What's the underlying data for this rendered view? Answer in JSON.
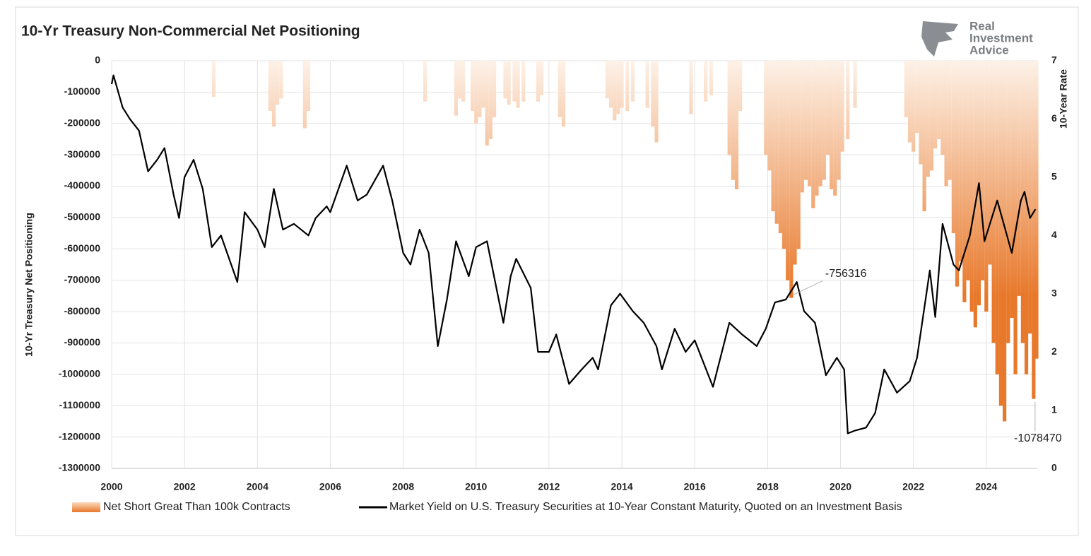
{
  "chart_data": {
    "type": "combo",
    "title": "10-Yr Treasury Non-Commercial Net Positioning",
    "ylabel": "10-Yr Treasury Net Positioning",
    "y2label": "10-Year Rate",
    "xlim": [
      2000,
      2025.4
    ],
    "xticks": [
      2000,
      2002,
      2004,
      2006,
      2008,
      2010,
      2012,
      2014,
      2016,
      2018,
      2020,
      2022,
      2024
    ],
    "ylim": [
      -1300000,
      0
    ],
    "yticks": [
      0,
      -100000,
      -200000,
      -300000,
      -400000,
      -500000,
      -600000,
      -700000,
      -800000,
      -900000,
      -1000000,
      -1100000,
      -1200000,
      -1300000
    ],
    "y2lim": [
      0,
      7
    ],
    "y2ticks": [
      0,
      1,
      2,
      3,
      4,
      5,
      6,
      7
    ],
    "grid": true,
    "legend": "bottom",
    "series": [
      {
        "name": "Net Short Great Than 100k Contracts",
        "type": "bar",
        "color": "#e8782a",
        "x": [
          2002.8,
          2004.35,
          2004.45,
          2004.55,
          2004.65,
          2005.3,
          2005.4,
          2008.6,
          2009.45,
          2009.55,
          2009.65,
          2009.9,
          2010.0,
          2010.1,
          2010.2,
          2010.3,
          2010.4,
          2010.5,
          2010.8,
          2010.9,
          2011.05,
          2011.15,
          2011.3,
          2011.7,
          2011.8,
          2012.3,
          2012.4,
          2013.6,
          2013.7,
          2013.8,
          2013.9,
          2014.0,
          2014.15,
          2014.3,
          2014.7,
          2014.85,
          2014.95,
          2015.9,
          2016.3,
          2016.45,
          2016.95,
          2017.05,
          2017.15,
          2017.25,
          2017.95,
          2018.05,
          2018.15,
          2018.25,
          2018.35,
          2018.45,
          2018.55,
          2018.65,
          2018.75,
          2018.85,
          2018.95,
          2019.05,
          2019.15,
          2019.25,
          2019.35,
          2019.45,
          2019.55,
          2019.65,
          2019.75,
          2019.85,
          2019.95,
          2020.05,
          2020.2,
          2020.4,
          2021.8,
          2021.9,
          2022.0,
          2022.1,
          2022.2,
          2022.3,
          2022.4,
          2022.5,
          2022.6,
          2022.7,
          2022.8,
          2022.9,
          2023.0,
          2023.1,
          2023.2,
          2023.3,
          2023.4,
          2023.5,
          2023.6,
          2023.7,
          2023.8,
          2023.9,
          2024.0,
          2024.1,
          2024.2,
          2024.3,
          2024.4,
          2024.5,
          2024.6,
          2024.7,
          2024.8,
          2024.9,
          2025.0,
          2025.1,
          2025.2,
          2025.3,
          2025.38
        ],
        "values": [
          -115000,
          -160000,
          -210000,
          -140000,
          -120000,
          -215000,
          -160000,
          -130000,
          -175000,
          -120000,
          -130000,
          -160000,
          -200000,
          -180000,
          -150000,
          -270000,
          -250000,
          -180000,
          -120000,
          -140000,
          -130000,
          -150000,
          -130000,
          -130000,
          -110000,
          -180000,
          -210000,
          -120000,
          -150000,
          -190000,
          -170000,
          -150000,
          -160000,
          -130000,
          -150000,
          -210000,
          -260000,
          -170000,
          -130000,
          -110000,
          -300000,
          -380000,
          -410000,
          -160000,
          -300000,
          -350000,
          -480000,
          -520000,
          -550000,
          -600000,
          -700000,
          -756316,
          -650000,
          -600000,
          -420000,
          -380000,
          -400000,
          -470000,
          -430000,
          -400000,
          -380000,
          -300000,
          -410000,
          -430000,
          -380000,
          -290000,
          -250000,
          -150000,
          -180000,
          -260000,
          -290000,
          -230000,
          -330000,
          -480000,
          -370000,
          -350000,
          -280000,
          -250000,
          -300000,
          -400000,
          -380000,
          -550000,
          -720000,
          -640000,
          -770000,
          -700000,
          -800000,
          -850000,
          -780000,
          -700000,
          -800000,
          -650000,
          -900000,
          -1000000,
          -1100000,
          -1150000,
          -900000,
          -820000,
          -1000000,
          -750000,
          -900000,
          -1000000,
          -870000,
          -1078470,
          -950000
        ]
      },
      {
        "name": "Market Yield on U.S. Treasury Securities at 10-Year Constant Maturity, Quoted on an Investment Basis",
        "type": "line",
        "color": "#000000",
        "axis": "y2",
        "x": [
          2000.0,
          2000.05,
          2000.3,
          2000.5,
          2000.75,
          2001.0,
          2001.25,
          2001.45,
          2001.7,
          2001.85,
          2002.0,
          2002.25,
          2002.5,
          2002.75,
          2003.0,
          2003.45,
          2003.65,
          2004.0,
          2004.2,
          2004.45,
          2004.7,
          2005.0,
          2005.4,
          2005.6,
          2005.9,
          2006.0,
          2006.45,
          2006.75,
          2007.0,
          2007.45,
          2007.7,
          2008.0,
          2008.2,
          2008.45,
          2008.7,
          2008.95,
          2009.2,
          2009.45,
          2009.8,
          2010.0,
          2010.3,
          2010.75,
          2010.95,
          2011.1,
          2011.5,
          2011.7,
          2012.0,
          2012.2,
          2012.55,
          2012.9,
          2013.2,
          2013.35,
          2013.7,
          2013.95,
          2014.3,
          2014.6,
          2014.95,
          2015.1,
          2015.45,
          2015.75,
          2016.0,
          2016.5,
          2016.95,
          2017.3,
          2017.7,
          2017.95,
          2018.2,
          2018.5,
          2018.8,
          2019.0,
          2019.3,
          2019.6,
          2019.9,
          2020.1,
          2020.2,
          2020.4,
          2020.7,
          2020.95,
          2021.2,
          2021.55,
          2021.9,
          2022.1,
          2022.45,
          2022.6,
          2022.8,
          2023.1,
          2023.25,
          2023.55,
          2023.8,
          2023.95,
          2024.3,
          2024.7,
          2024.95,
          2025.05,
          2025.2,
          2025.35
        ],
        "values": [
          6.6,
          6.75,
          6.2,
          6.0,
          5.8,
          5.1,
          5.3,
          5.5,
          4.7,
          4.3,
          5.0,
          5.3,
          4.8,
          3.8,
          4.0,
          3.2,
          4.4,
          4.1,
          3.8,
          4.8,
          4.1,
          4.2,
          4.0,
          4.3,
          4.5,
          4.4,
          5.2,
          4.6,
          4.7,
          5.2,
          4.6,
          3.7,
          3.5,
          4.1,
          3.7,
          2.1,
          2.9,
          3.9,
          3.3,
          3.8,
          3.9,
          2.5,
          3.3,
          3.6,
          3.1,
          2.0,
          2.0,
          2.3,
          1.45,
          1.7,
          1.9,
          1.7,
          2.8,
          3.0,
          2.7,
          2.5,
          2.1,
          1.7,
          2.4,
          2.0,
          2.2,
          1.4,
          2.5,
          2.3,
          2.1,
          2.4,
          2.85,
          2.9,
          3.2,
          2.7,
          2.5,
          1.6,
          1.9,
          1.7,
          0.6,
          0.65,
          0.7,
          0.95,
          1.7,
          1.3,
          1.5,
          1.9,
          3.4,
          2.6,
          4.2,
          3.5,
          3.4,
          4.0,
          4.9,
          3.9,
          4.6,
          3.7,
          4.6,
          4.75,
          4.3,
          4.45
        ]
      }
    ],
    "annotations": [
      {
        "x": 2018.65,
        "value": -756316
      },
      {
        "x": 2025.3,
        "value": -1078470
      }
    ]
  },
  "logo": [
    "Real",
    "Investment",
    "Advice"
  ]
}
